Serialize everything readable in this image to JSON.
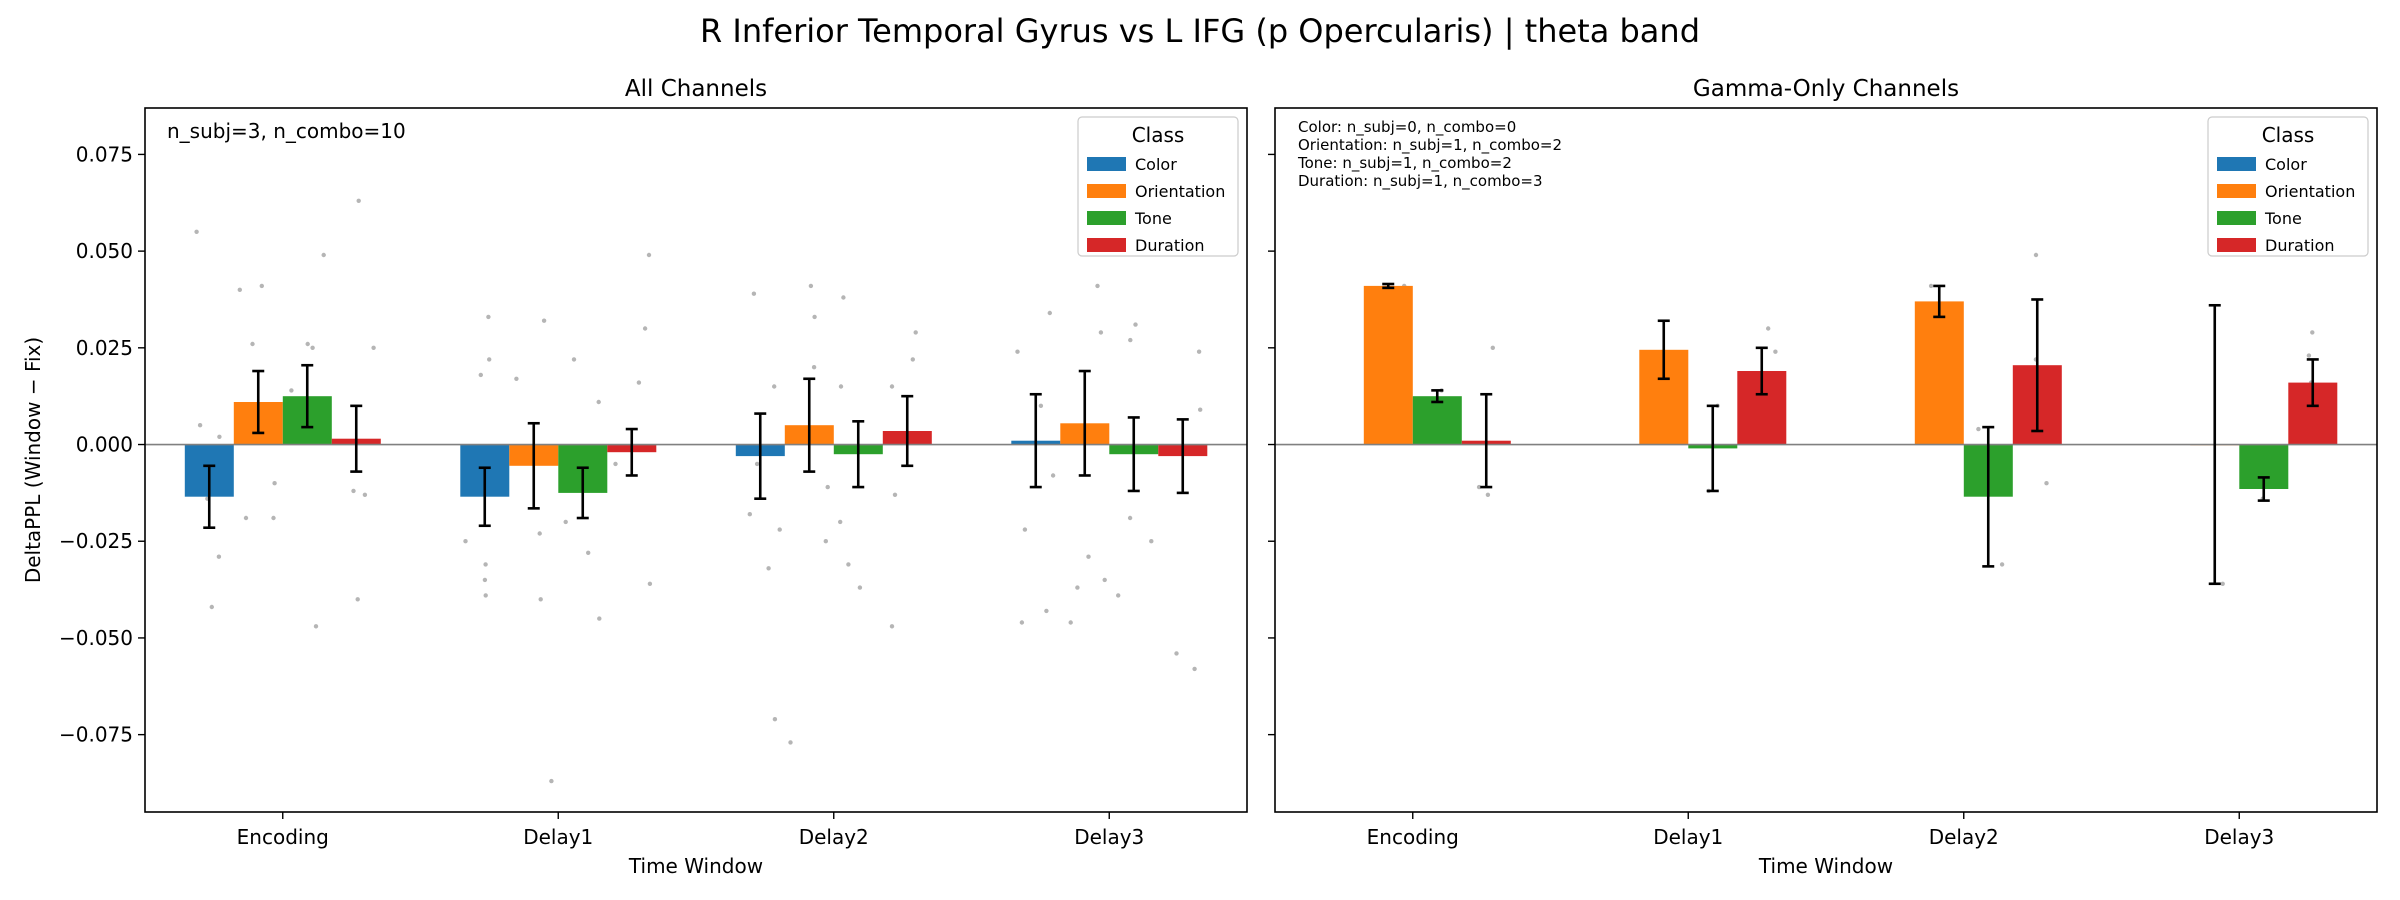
{
  "suptitle": "R Inferior Temporal Gyrus vs L IFG (p Opercularis)  |  theta band",
  "colors": {
    "Color": "#1f77b4",
    "Orientation": "#ff7f0e",
    "Tone": "#2ca02c",
    "Duration": "#d62728"
  },
  "chart_data": [
    {
      "type": "bar",
      "title": "All Channels",
      "xlabel": "Time Window",
      "ylabel": "DeltaPPL (Window − Fix)",
      "ylim": [
        -0.095,
        0.087
      ],
      "yticks": [
        -0.075,
        -0.05,
        -0.025,
        0.0,
        0.025,
        0.05,
        0.075
      ],
      "ytick_labels": [
        "−0.075",
        "−0.050",
        "−0.025",
        "0.000",
        "0.025",
        "0.050",
        "0.075"
      ],
      "categories": [
        "Encoding",
        "Delay1",
        "Delay2",
        "Delay3"
      ],
      "annotation": [
        "n_subj=3, n_combo=10"
      ],
      "legend": {
        "title": "Class",
        "position": "top-right"
      },
      "series": [
        {
          "name": "Color",
          "values": [
            -0.0135,
            -0.0135,
            -0.003,
            0.001
          ],
          "err": [
            0.008,
            0.0075,
            0.011,
            0.012
          ],
          "points": [
            0.055,
            -0.029,
            -0.042,
            -0.014,
            0.005,
            -0.01,
            0.002,
            -0.035,
            -0.039,
            -0.031,
            -0.025,
            0.033,
            0.022,
            0.018,
            0.015,
            0.039,
            -0.005,
            -0.018,
            -0.022,
            -0.032,
            -0.071,
            0.034,
            0.024,
            0.01,
            -0.008,
            -0.022,
            -0.043,
            -0.046
          ]
        },
        {
          "name": "Orientation",
          "values": [
            0.011,
            -0.0055,
            0.005,
            0.0055
          ],
          "err": [
            0.008,
            0.011,
            0.012,
            0.0135
          ],
          "points": [
            0.041,
            0.04,
            0.026,
            -0.019,
            -0.019,
            -0.01,
            -0.023,
            0.032,
            0.017,
            -0.04,
            -0.087,
            -0.004,
            0.041,
            0.033,
            0.02,
            -0.011,
            -0.025,
            -0.077,
            0.041,
            0.029,
            -0.037,
            -0.046,
            -0.035,
            -0.029
          ]
        },
        {
          "name": "Tone",
          "values": [
            0.0125,
            -0.0125,
            -0.0025,
            -0.0025
          ],
          "err": [
            0.008,
            0.0065,
            0.0085,
            0.0095
          ],
          "points": [
            0.025,
            0.026,
            0.049,
            -0.047,
            0.014,
            0.022,
            0.011,
            -0.028,
            -0.045,
            -0.02,
            0.038,
            0.015,
            -0.02,
            -0.031,
            -0.037,
            0.031,
            0.027,
            -0.019,
            -0.025,
            -0.039
          ]
        },
        {
          "name": "Duration",
          "values": [
            0.0015,
            -0.002,
            0.0035,
            -0.003
          ],
          "err": [
            0.0085,
            0.006,
            0.009,
            0.0095
          ],
          "points": [
            0.063,
            0.025,
            -0.013,
            -0.04,
            -0.012,
            0.03,
            0.016,
            -0.005,
            -0.036,
            0.049,
            0.022,
            0.015,
            -0.013,
            -0.047,
            0.029,
            0.024,
            0.009,
            -0.054,
            -0.058
          ]
        }
      ]
    },
    {
      "type": "bar",
      "title": "Gamma-Only Channels",
      "xlabel": "Time Window",
      "ylim": [
        -0.095,
        0.087
      ],
      "categories": [
        "Encoding",
        "Delay1",
        "Delay2",
        "Delay3"
      ],
      "annotation": [
        "Color: n_subj=0, n_combo=0",
        "Orientation: n_subj=1, n_combo=2",
        "Tone: n_subj=1, n_combo=2",
        "Duration: n_subj=1, n_combo=3"
      ],
      "legend": {
        "title": "Class",
        "position": "top-right"
      },
      "series": [
        {
          "name": "Color",
          "values": [
            null,
            null,
            null,
            null
          ],
          "err": [
            null,
            null,
            null,
            null
          ],
          "points": []
        },
        {
          "name": "Orientation",
          "values": [
            0.041,
            0.0245,
            0.037,
            0.0
          ],
          "err": [
            0.0005,
            0.0075,
            0.004,
            0.036
          ],
          "points": [
            0.041,
            0.032,
            0.017,
            0.041,
            0.033,
            -0.036
          ]
        },
        {
          "name": "Tone",
          "values": [
            0.0125,
            -0.001,
            -0.0135,
            -0.0115
          ],
          "err": [
            0.0015,
            0.011,
            0.018,
            0.003
          ],
          "points": [
            0.014,
            0.011,
            0.01,
            -0.012,
            0.004,
            -0.031,
            -0.009,
            -0.014
          ]
        },
        {
          "name": "Duration",
          "values": [
            0.001,
            0.019,
            0.0205,
            0.016
          ],
          "err": [
            0.012,
            0.006,
            0.017,
            0.006
          ],
          "points": [
            0.025,
            -0.011,
            -0.013,
            0.03,
            0.024,
            0.014,
            0.049,
            0.022,
            -0.01,
            0.029,
            0.023,
            0.016
          ]
        }
      ]
    }
  ]
}
